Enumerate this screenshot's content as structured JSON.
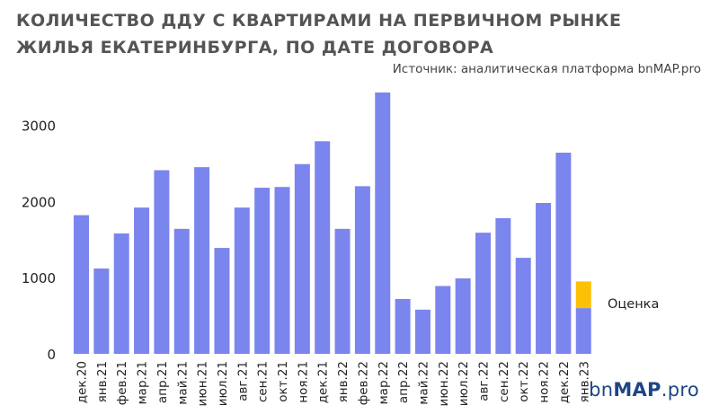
{
  "title": "КОЛИЧЕСТВО ДДУ С КВАРТИРАМИ НА ПЕРВИЧНОМ РЫНКЕ ЖИЛЬЯ ЕКАТЕРИНБУРГА, ПО ДАТЕ ДОГОВОРА",
  "source": "Источник: аналитическая платформа bnMAP.pro",
  "logo": {
    "prefix": "bn",
    "main": "MAP",
    "suffix": ".pro"
  },
  "colors": {
    "bar": "#7b85ee",
    "estimate": "#fcc105",
    "axis_text": "#222222",
    "title": "#545454"
  },
  "chart_data": {
    "type": "bar",
    "categories": [
      "дек.20",
      "янв.21",
      "фев.21",
      "мар.21",
      "апр.21",
      "май.21",
      "июн.21",
      "июл.21",
      "авг.21",
      "сен.21",
      "окт.21",
      "ноя.21",
      "дек.21",
      "янв.22",
      "фев.22",
      "мар.22",
      "апр.22",
      "май.22",
      "июн.22",
      "июл.22",
      "авг.22",
      "сен.22",
      "окт.22",
      "ноя.22",
      "дек.22",
      "янв.23"
    ],
    "series": [
      {
        "values": [
          1820,
          1120,
          1580,
          1920,
          2410,
          1640,
          2450,
          1390,
          1920,
          2180,
          2190,
          2490,
          2790,
          1640,
          2200,
          3430,
          720,
          580,
          890,
          990,
          1590,
          1780,
          1260,
          1980,
          2640,
          600
        ]
      },
      {
        "name": "Оценка",
        "values": [
          0,
          0,
          0,
          0,
          0,
          0,
          0,
          0,
          0,
          0,
          0,
          0,
          0,
          0,
          0,
          0,
          0,
          0,
          0,
          0,
          0,
          0,
          0,
          0,
          0,
          350
        ]
      }
    ],
    "yticks": [
      0,
      1000,
      2000,
      3000
    ],
    "ylim": [
      0,
      3430
    ],
    "stacked": true,
    "annotation": "Оценка",
    "grid": false,
    "legend": "none"
  }
}
